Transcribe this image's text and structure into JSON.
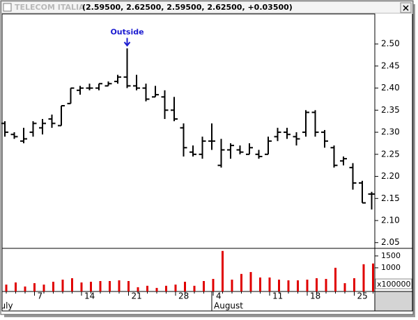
{
  "window": {
    "title": "TELECOM ITALIA",
    "quote": "(2.59500, 2.62500, 2.59500, 2.62500, +0.03500)"
  },
  "chart_data": [
    {
      "type": "ohlc",
      "categories": [
        null,
        null,
        null,
        "7",
        null,
        null,
        null,
        null,
        "14",
        null,
        null,
        null,
        null,
        "21",
        null,
        null,
        null,
        null,
        "28",
        null,
        null,
        null,
        "4",
        null,
        null,
        null,
        null,
        null,
        "11",
        null,
        null,
        null,
        "18",
        null,
        null,
        null,
        null,
        "25",
        null,
        null
      ],
      "months": [
        {
          "label": "July",
          "start": 0
        },
        {
          "label": "August",
          "start": 22
        }
      ],
      "color": "#000000",
      "open": [
        2.32,
        2.295,
        2.28,
        2.3,
        2.31,
        2.33,
        2.315,
        2.365,
        2.395,
        2.4,
        2.4,
        2.405,
        2.415,
        2.425,
        2.405,
        2.4,
        2.38,
        2.38,
        2.35,
        2.31,
        2.255,
        2.25,
        2.28,
        2.225,
        2.26,
        2.26,
        2.25,
        2.25,
        2.25,
        2.29,
        2.3,
        2.29,
        2.3,
        2.345,
        2.3,
        2.265,
        2.235,
        2.22,
        2.185,
        2.16
      ],
      "high": [
        2.325,
        2.3,
        2.31,
        2.325,
        2.33,
        2.34,
        2.36,
        2.4,
        2.405,
        2.41,
        2.41,
        2.415,
        2.43,
        2.49,
        2.43,
        2.41,
        2.405,
        2.395,
        2.38,
        2.32,
        2.27,
        2.29,
        2.32,
        2.285,
        2.275,
        2.27,
        2.275,
        2.26,
        2.29,
        2.31,
        2.31,
        2.3,
        2.35,
        2.35,
        2.305,
        2.27,
        2.245,
        2.23,
        2.19,
        2.165
      ],
      "low": [
        2.29,
        2.285,
        2.275,
        2.29,
        2.295,
        2.31,
        2.315,
        2.365,
        2.385,
        2.395,
        2.395,
        2.405,
        2.41,
        2.4,
        2.395,
        2.37,
        2.38,
        2.33,
        2.325,
        2.245,
        2.245,
        2.24,
        2.26,
        2.22,
        2.24,
        2.25,
        2.25,
        2.24,
        2.25,
        2.28,
        2.285,
        2.27,
        2.29,
        2.29,
        2.265,
        2.22,
        2.225,
        2.17,
        2.14,
        2.125
      ],
      "close": [
        2.3,
        2.29,
        2.285,
        2.32,
        2.32,
        2.32,
        2.36,
        2.4,
        2.4,
        2.4,
        2.41,
        2.41,
        2.425,
        2.405,
        2.4,
        2.375,
        2.385,
        2.35,
        2.33,
        2.265,
        2.25,
        2.28,
        2.28,
        2.26,
        2.27,
        2.255,
        2.265,
        2.245,
        2.28,
        2.3,
        2.295,
        2.285,
        2.345,
        2.3,
        2.28,
        2.225,
        2.24,
        2.185,
        2.14,
        2.16
      ],
      "ylim": [
        2.037,
        2.568
      ],
      "yticks": [
        {
          "value": 2.05,
          "label": "2.05"
        },
        {
          "value": 2.1,
          "label": "2.10"
        },
        2.15,
        {
          "value": 2.2,
          "label": "2.20"
        },
        2.25,
        {
          "value": 2.3,
          "label": "2.30"
        },
        2.35,
        {
          "value": 2.4,
          "label": "2.40"
        },
        2.45,
        {
          "value": 2.5,
          "label": "2.50"
        }
      ],
      "annotations": [
        {
          "text": "Outside",
          "index": 13
        }
      ]
    },
    {
      "type": "bar",
      "color": "#e00000",
      "values": [
        290,
        380,
        210,
        350,
        290,
        410,
        500,
        560,
        380,
        410,
        440,
        440,
        470,
        440,
        180,
        240,
        150,
        240,
        290,
        410,
        240,
        440,
        530,
        1710,
        500,
        740,
        820,
        590,
        590,
        500,
        470,
        470,
        500,
        560,
        530,
        1000,
        350,
        560,
        1150,
        1180
      ],
      "ylim": [
        0,
        1820
      ],
      "yticks": [
        1000,
        1500
      ],
      "unit_label": "x100000"
    }
  ]
}
